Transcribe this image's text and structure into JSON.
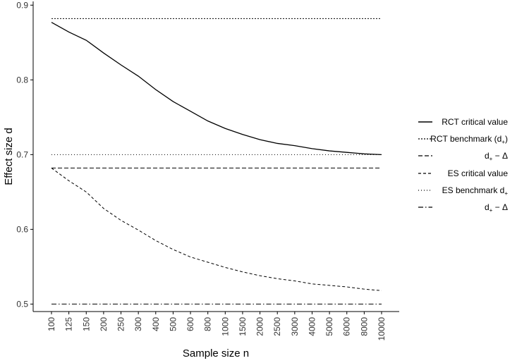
{
  "chart_data": {
    "type": "line",
    "xlabel": "Sample size n",
    "ylabel": "Effect size d",
    "x_ticks": [
      "100",
      "125",
      "150",
      "200",
      "250",
      "300",
      "400",
      "500",
      "600",
      "800",
      "1000",
      "1500",
      "2000",
      "2500",
      "3000",
      "4000",
      "5000",
      "6000",
      "8000",
      "10000"
    ],
    "y_ticks": [
      "0.5",
      "0.6",
      "0.7",
      "0.8",
      "0.9"
    ],
    "ylim": [
      0.49,
      0.905
    ],
    "grid": false,
    "legend_position": "right",
    "series": [
      {
        "name": "RCT critical value",
        "dash": "solid",
        "x": [
          100,
          125,
          150,
          200,
          250,
          300,
          400,
          500,
          600,
          800,
          1000,
          1500,
          2000,
          2500,
          3000,
          4000,
          5000,
          6000,
          8000,
          10000
        ],
        "y": [
          0.877,
          0.864,
          0.853,
          0.836,
          0.82,
          0.805,
          0.787,
          0.771,
          0.758,
          0.745,
          0.735,
          0.727,
          0.72,
          0.715,
          0.712,
          0.708,
          0.705,
          0.703,
          0.701,
          0.7
        ]
      },
      {
        "name": "RCT benchmark (d+)",
        "dash": "dot",
        "x": [
          100,
          10000
        ],
        "y": [
          0.882,
          0.882
        ]
      },
      {
        "name": "d+ − Δ",
        "dash": "dash-long",
        "x": [
          100,
          10000
        ],
        "y": [
          0.682,
          0.682
        ]
      },
      {
        "name": "ES critical value",
        "dash": "dash",
        "x": [
          100,
          125,
          150,
          200,
          250,
          300,
          400,
          500,
          600,
          800,
          1000,
          1500,
          2000,
          2500,
          3000,
          4000,
          5000,
          6000,
          8000,
          10000
        ],
        "y": [
          0.682,
          0.665,
          0.65,
          0.628,
          0.612,
          0.599,
          0.585,
          0.573,
          0.563,
          0.556,
          0.549,
          0.543,
          0.538,
          0.534,
          0.531,
          0.527,
          0.525,
          0.523,
          0.52,
          0.518
        ]
      },
      {
        "name": "ES benchmark d+",
        "dash": "dot-fine",
        "x": [
          100,
          10000
        ],
        "y": [
          0.7,
          0.7
        ]
      },
      {
        "name": "d+ − Δ",
        "dash": "dashdot",
        "x": [
          100,
          10000
        ],
        "y": [
          0.5,
          0.5
        ]
      }
    ]
  },
  "legend": {
    "entries": [
      {
        "main": "RCT critical value",
        "sub": "",
        "tail": ""
      },
      {
        "main": "RCT benchmark (d",
        "sub": "+",
        "tail": ")"
      },
      {
        "main": "d",
        "sub": "+",
        "tail": " − Δ"
      },
      {
        "main": "ES critical value",
        "sub": "",
        "tail": ""
      },
      {
        "main": "ES benchmark d",
        "sub": "+",
        "tail": ""
      },
      {
        "main": "d",
        "sub": "+",
        "tail": " − Δ"
      }
    ]
  }
}
